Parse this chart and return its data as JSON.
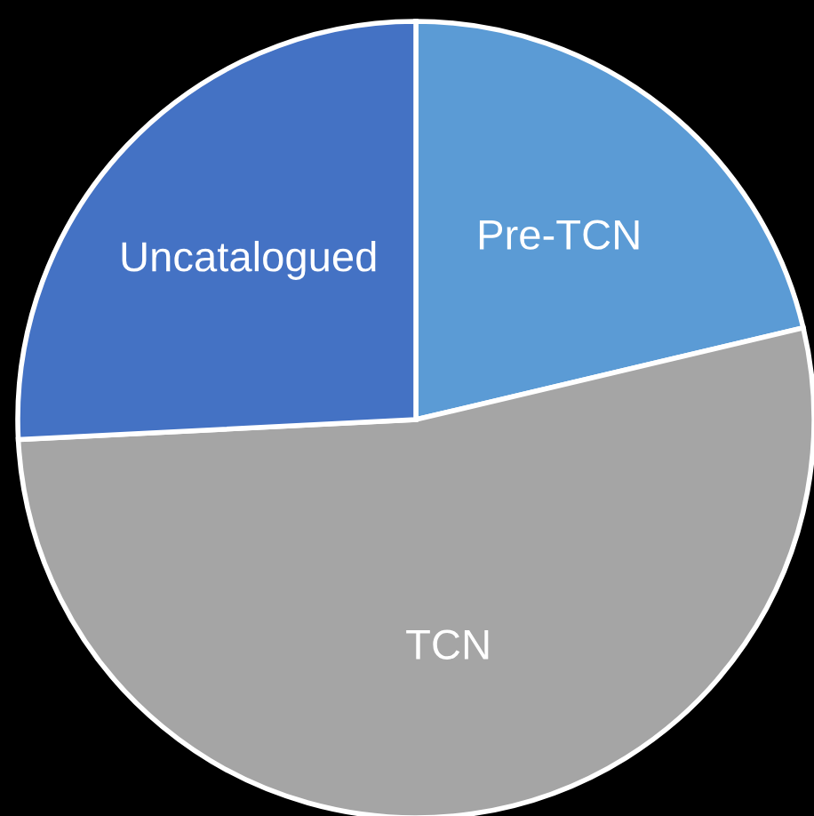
{
  "chart_data": {
    "type": "pie",
    "categories": [
      "Pre-TCN",
      "TCN",
      "Uncatalogued"
    ],
    "values": [
      21.3,
      52.9,
      25.8
    ],
    "colors": [
      "#5b9bd5",
      "#a5a5a5",
      "#4472c4"
    ]
  }
}
